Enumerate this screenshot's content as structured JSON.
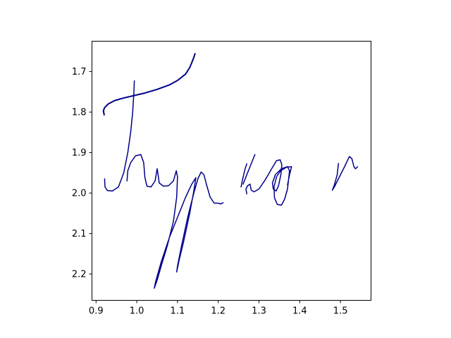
{
  "chart_data": {
    "type": "line",
    "title": "",
    "xlabel": "",
    "ylabel": "",
    "xlim": [
      0.89,
      1.575
    ],
    "ylim": [
      2.265,
      1.625
    ],
    "y_inverted": true,
    "grid": false,
    "legend": "none",
    "x_ticks": [
      0.9,
      1.0,
      1.1,
      1.2,
      1.3,
      1.4,
      1.5
    ],
    "x_tick_labels": [
      "0.9",
      "1.0",
      "1.1",
      "1.2",
      "1.3",
      "1.4",
      "1.5"
    ],
    "y_ticks": [
      1.7,
      1.8,
      1.9,
      2.0,
      2.1,
      2.2
    ],
    "y_tick_labels": [
      "1.7",
      "1.8",
      "1.9",
      "2.0",
      "2.1",
      "2.2"
    ],
    "line_color": "#00008b",
    "series": [
      {
        "points": [
          [
            0.92,
            1.807
          ],
          [
            0.918,
            1.797
          ],
          [
            0.921,
            1.789
          ],
          [
            0.93,
            1.78
          ],
          [
            0.945,
            1.772
          ],
          [
            0.965,
            1.766
          ],
          [
            0.99,
            1.76
          ],
          [
            1.02,
            1.753
          ],
          [
            1.05,
            1.744
          ],
          [
            1.08,
            1.733
          ],
          [
            1.1,
            1.722
          ],
          [
            1.12,
            1.706
          ],
          [
            1.13,
            1.69
          ],
          [
            1.135,
            1.678
          ],
          [
            1.14,
            1.665
          ],
          [
            1.143,
            1.656
          ]
        ]
      },
      {
        "points": [
          [
            0.994,
            1.723
          ],
          [
            0.993,
            1.75
          ],
          [
            0.99,
            1.8
          ],
          [
            0.985,
            1.85
          ],
          [
            0.978,
            1.9
          ],
          [
            0.968,
            1.95
          ],
          [
            0.955,
            1.985
          ],
          [
            0.94,
            1.995
          ],
          [
            0.928,
            1.994
          ],
          [
            0.922,
            1.985
          ],
          [
            0.921,
            1.965
          ]
        ]
      },
      {
        "points": [
          [
            0.976,
            1.97
          ],
          [
            0.978,
            1.945
          ],
          [
            0.985,
            1.925
          ],
          [
            0.997,
            1.908
          ],
          [
            1.01,
            1.905
          ],
          [
            1.017,
            1.925
          ],
          [
            1.02,
            1.962
          ],
          [
            1.025,
            1.983
          ],
          [
            1.035,
            1.985
          ],
          [
            1.045,
            1.97
          ],
          [
            1.05,
            1.94
          ],
          [
            1.052,
            1.952
          ],
          [
            1.055,
            1.975
          ],
          [
            1.065,
            1.983
          ],
          [
            1.078,
            1.982
          ],
          [
            1.09,
            1.97
          ],
          [
            1.097,
            1.945
          ],
          [
            1.1,
            1.96
          ],
          [
            1.098,
            2.01
          ],
          [
            1.09,
            2.07
          ],
          [
            1.075,
            2.13
          ],
          [
            1.06,
            2.18
          ],
          [
            1.05,
            2.215
          ],
          [
            1.043,
            2.235
          ],
          [
            1.046,
            2.22
          ],
          [
            1.06,
            2.17
          ],
          [
            1.08,
            2.11
          ],
          [
            1.1,
            2.06
          ],
          [
            1.12,
            2.01
          ],
          [
            1.135,
            1.978
          ],
          [
            1.145,
            1.962
          ],
          [
            1.14,
            1.995
          ],
          [
            1.13,
            2.05
          ],
          [
            1.115,
            2.12
          ],
          [
            1.103,
            2.17
          ],
          [
            1.098,
            2.195
          ],
          [
            1.1,
            2.18
          ],
          [
            1.11,
            2.13
          ],
          [
            1.125,
            2.06
          ],
          [
            1.14,
            2.0
          ],
          [
            1.15,
            1.965
          ],
          [
            1.158,
            1.948
          ],
          [
            1.165,
            1.955
          ],
          [
            1.17,
            1.975
          ],
          [
            1.18,
            2.01
          ],
          [
            1.19,
            2.025
          ],
          [
            1.2,
            2.025
          ],
          [
            1.205,
            2.027
          ],
          [
            1.212,
            2.024
          ]
        ]
      },
      {
        "points": [
          [
            1.256,
            1.985
          ],
          [
            1.26,
            1.965
          ],
          [
            1.266,
            1.94
          ],
          [
            1.27,
            1.928
          ]
        ]
      },
      {
        "points": [
          [
            1.261,
            1.978
          ],
          [
            1.27,
            1.955
          ],
          [
            1.28,
            1.93
          ],
          [
            1.29,
            1.905
          ]
        ]
      },
      {
        "points": [
          [
            1.27,
            2.002
          ],
          [
            1.268,
            1.99
          ],
          [
            1.272,
            1.982
          ],
          [
            1.278,
            1.978
          ],
          [
            1.281,
            1.993
          ],
          [
            1.288,
            1.997
          ],
          [
            1.3,
            1.99
          ],
          [
            1.315,
            1.968
          ],
          [
            1.33,
            1.942
          ],
          [
            1.343,
            1.92
          ],
          [
            1.352,
            1.918
          ],
          [
            1.356,
            1.93
          ],
          [
            1.354,
            1.953
          ],
          [
            1.348,
            1.982
          ],
          [
            1.342,
            1.995
          ],
          [
            1.335,
            1.99
          ],
          [
            1.333,
            1.975
          ],
          [
            1.34,
            1.955
          ],
          [
            1.355,
            1.94
          ],
          [
            1.37,
            1.935
          ],
          [
            1.375,
            1.945
          ],
          [
            1.37,
            1.99
          ],
          [
            1.363,
            2.015
          ],
          [
            1.355,
            2.03
          ],
          [
            1.345,
            2.028
          ],
          [
            1.338,
            2.012
          ],
          [
            1.337,
            1.985
          ],
          [
            1.343,
            1.96
          ],
          [
            1.353,
            1.945
          ],
          [
            1.368,
            1.936
          ],
          [
            1.38,
            1.935
          ],
          [
            1.375,
            1.955
          ],
          [
            1.37,
            1.98
          ]
        ]
      },
      {
        "points": [
          [
            1.495,
            1.927
          ],
          [
            1.492,
            1.955
          ],
          [
            1.485,
            1.98
          ],
          [
            1.48,
            1.993
          ],
          [
            1.485,
            1.985
          ],
          [
            1.5,
            1.955
          ],
          [
            1.51,
            1.935
          ],
          [
            1.518,
            1.918
          ],
          [
            1.522,
            1.91
          ],
          [
            1.528,
            1.915
          ],
          [
            1.533,
            1.935
          ],
          [
            1.537,
            1.94
          ],
          [
            1.542,
            1.935
          ]
        ]
      }
    ]
  }
}
